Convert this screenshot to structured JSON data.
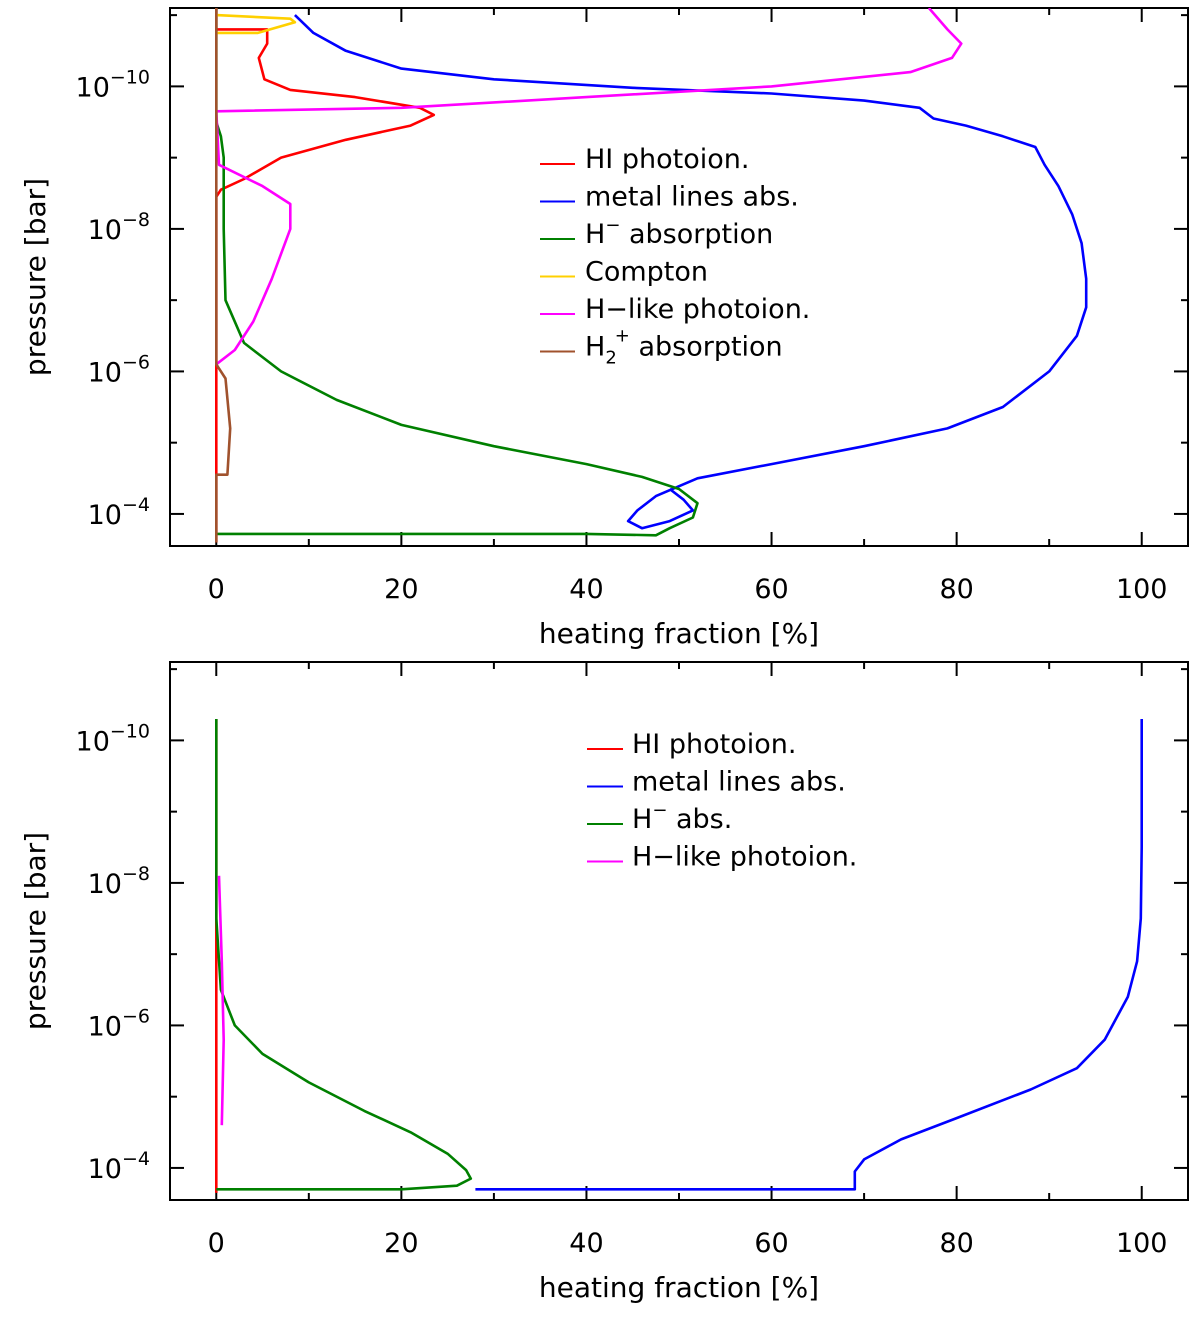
{
  "chart_data": [
    {
      "type": "line",
      "title": "",
      "xlabel": "heating fraction [%]",
      "ylabel": "pressure [bar]",
      "xscale": "linear",
      "yscale": "log",
      "xlim": [
        -5,
        105
      ],
      "ylim_exponent": [
        -11.1,
        -3.55
      ],
      "y_inverted": true,
      "x_ticks": [
        "0",
        "20",
        "40",
        "60",
        "80",
        "100"
      ],
      "y_ticks": [
        {
          "base": "10",
          "exp": "−10",
          "value": -10
        },
        {
          "base": "10",
          "exp": "−8",
          "value": -8
        },
        {
          "base": "10",
          "exp": "−6",
          "value": -6
        },
        {
          "base": "10",
          "exp": "−4",
          "value": -4
        }
      ],
      "legend_placement": "center",
      "series": [
        {
          "name": "HI photoion.",
          "color": "#ff0000",
          "points": [
            [
              0,
              -11.1
            ],
            [
              0,
              -10.8
            ],
            [
              5.5,
              -10.8
            ],
            [
              5.5,
              -10.6
            ],
            [
              4.6,
              -10.4
            ],
            [
              5.2,
              -10.1
            ],
            [
              8,
              -9.95
            ],
            [
              15,
              -9.85
            ],
            [
              22,
              -9.7
            ],
            [
              23.5,
              -9.6
            ],
            [
              21,
              -9.45
            ],
            [
              14,
              -9.25
            ],
            [
              7,
              -9.0
            ],
            [
              3,
              -8.7
            ],
            [
              0.5,
              -8.55
            ],
            [
              0,
              -8.45
            ],
            [
              0,
              -3.6
            ]
          ]
        },
        {
          "name": "metal lines abs.",
          "color": "#0000ff",
          "points": [
            [
              8.5,
              -11.0
            ],
            [
              10.5,
              -10.75
            ],
            [
              14,
              -10.5
            ],
            [
              20,
              -10.25
            ],
            [
              30,
              -10.1
            ],
            [
              45,
              -9.98
            ],
            [
              60,
              -9.9
            ],
            [
              70,
              -9.8
            ],
            [
              76,
              -9.7
            ],
            [
              77.5,
              -9.55
            ],
            [
              81,
              -9.45
            ],
            [
              85,
              -9.3
            ],
            [
              88.5,
              -9.15
            ],
            [
              89.5,
              -8.9
            ],
            [
              91,
              -8.6
            ],
            [
              92.5,
              -8.2
            ],
            [
              93.5,
              -7.8
            ],
            [
              94,
              -7.3
            ],
            [
              94,
              -6.9
            ],
            [
              93,
              -6.5
            ],
            [
              90,
              -6.0
            ],
            [
              85,
              -5.5
            ],
            [
              79,
              -5.2
            ],
            [
              70,
              -4.95
            ],
            [
              60,
              -4.7
            ],
            [
              52,
              -4.5
            ],
            [
              47.5,
              -4.25
            ],
            [
              45.5,
              -4.05
            ],
            [
              44.5,
              -3.9
            ],
            [
              46,
              -3.8
            ],
            [
              49,
              -3.9
            ],
            [
              51.5,
              -4.05
            ],
            [
              50.5,
              -4.2
            ],
            [
              49,
              -4.35
            ]
          ]
        },
        {
          "name": "H− absorption",
          "color": "#008000",
          "points": [
            [
              0,
              -11.1
            ],
            [
              0,
              -9.5
            ],
            [
              0.5,
              -9.3
            ],
            [
              0.8,
              -9.0
            ],
            [
              0.8,
              -8.0
            ],
            [
              1,
              -7.0
            ],
            [
              3,
              -6.4
            ],
            [
              7,
              -6.0
            ],
            [
              13,
              -5.6
            ],
            [
              20,
              -5.25
            ],
            [
              30,
              -4.95
            ],
            [
              40,
              -4.7
            ],
            [
              46,
              -4.52
            ],
            [
              50,
              -4.35
            ],
            [
              52,
              -4.15
            ],
            [
              51.5,
              -3.95
            ],
            [
              49,
              -3.8
            ],
            [
              47.5,
              -3.7
            ],
            [
              40,
              -3.72
            ],
            [
              20,
              -3.72
            ],
            [
              0,
              -3.72
            ]
          ]
        },
        {
          "name": "Compton",
          "color": "#ffd000",
          "points": [
            [
              0,
              -11.0
            ],
            [
              8,
              -10.95
            ],
            [
              8.5,
              -10.9
            ],
            [
              4.5,
              -10.75
            ],
            [
              0,
              -10.75
            ]
          ]
        },
        {
          "name": "H-like photoion.",
          "color": "#ff00ff",
          "points": [
            [
              77,
              -11.1
            ],
            [
              79,
              -10.8
            ],
            [
              80.5,
              -10.6
            ],
            [
              79.5,
              -10.4
            ],
            [
              75,
              -10.2
            ],
            [
              60,
              -10.0
            ],
            [
              40,
              -9.85
            ],
            [
              20,
              -9.7
            ],
            [
              0,
              -9.65
            ],
            [
              0.3,
              -8.9
            ],
            [
              5,
              -8.6
            ],
            [
              8,
              -8.35
            ],
            [
              8,
              -8.0
            ],
            [
              6,
              -7.3
            ],
            [
              4,
              -6.7
            ],
            [
              2,
              -6.3
            ],
            [
              0,
              -6.1
            ]
          ]
        },
        {
          "name": "H2+ absorption",
          "color": "#a0522d",
          "points": [
            [
              0,
              -11.1
            ],
            [
              0,
              -6.1
            ],
            [
              1,
              -5.9
            ],
            [
              1.5,
              -5.2
            ],
            [
              1.2,
              -4.55
            ],
            [
              0,
              -4.55
            ],
            [
              0,
              -3.6
            ]
          ]
        }
      ],
      "legend_entries": [
        {
          "label": "HI photoion.",
          "color": "#ff0000"
        },
        {
          "label": "metal lines abs.",
          "color": "#0000ff"
        },
        {
          "label": "H",
          "sup": "−",
          "tail": " absorption",
          "color": "#008000"
        },
        {
          "label": "Compton",
          "color": "#ffd000"
        },
        {
          "label": "H−like photoion.",
          "color": "#ff00ff"
        },
        {
          "label": "H",
          "sub": "2",
          "sup": "+",
          "tail": " absorption",
          "color": "#a0522d"
        }
      ]
    },
    {
      "type": "line",
      "title": "",
      "xlabel": "heating fraction [%]",
      "ylabel": "pressure [bar]",
      "xscale": "linear",
      "yscale": "log",
      "xlim": [
        -5,
        105
      ],
      "ylim_exponent": [
        -11.1,
        -3.55
      ],
      "y_inverted": true,
      "x_ticks": [
        "0",
        "20",
        "40",
        "60",
        "80",
        "100"
      ],
      "y_ticks": [
        {
          "base": "10",
          "exp": "−10",
          "value": -10
        },
        {
          "base": "10",
          "exp": "−8",
          "value": -8
        },
        {
          "base": "10",
          "exp": "−6",
          "value": -6
        },
        {
          "base": "10",
          "exp": "−4",
          "value": -4
        }
      ],
      "legend_placement": "top-center",
      "series": [
        {
          "name": "HI photoion.",
          "color": "#ff0000",
          "points": [
            [
              0,
              -10.3
            ],
            [
              0,
              -3.65
            ]
          ]
        },
        {
          "name": "metal lines abs.",
          "color": "#0000ff",
          "points": [
            [
              100,
              -10.3
            ],
            [
              100,
              -8.5
            ],
            [
              99.9,
              -7.5
            ],
            [
              99.5,
              -6.9
            ],
            [
              98.5,
              -6.4
            ],
            [
              96,
              -5.8
            ],
            [
              93,
              -5.4
            ],
            [
              88,
              -5.1
            ],
            [
              80,
              -4.7
            ],
            [
              74,
              -4.4
            ],
            [
              70,
              -4.12
            ],
            [
              69,
              -3.95
            ],
            [
              69,
              -3.7
            ],
            [
              28,
              -3.7
            ]
          ]
        },
        {
          "name": "H− abs.",
          "color": "#008000",
          "points": [
            [
              0,
              -10.3
            ],
            [
              0,
              -7.5
            ],
            [
              0.5,
              -6.5
            ],
            [
              2,
              -6.0
            ],
            [
              5,
              -5.6
            ],
            [
              10,
              -5.2
            ],
            [
              16,
              -4.8
            ],
            [
              21,
              -4.5
            ],
            [
              25,
              -4.2
            ],
            [
              27,
              -3.97
            ],
            [
              27.5,
              -3.85
            ],
            [
              26,
              -3.75
            ],
            [
              20,
              -3.7
            ],
            [
              0,
              -3.7
            ]
          ]
        },
        {
          "name": "H-like photoion.",
          "color": "#ff00ff",
          "points": [
            [
              0.3,
              -8.1
            ],
            [
              0.6,
              -6.9
            ],
            [
              0.8,
              -5.8
            ],
            [
              0.6,
              -4.6
            ]
          ]
        }
      ],
      "legend_entries": [
        {
          "label": "HI photoion.",
          "color": "#ff0000"
        },
        {
          "label": "metal lines abs.",
          "color": "#0000ff"
        },
        {
          "label": "H",
          "sup": "−",
          "tail": " abs.",
          "color": "#008000"
        },
        {
          "label": "H−like photoion.",
          "color": "#ff00ff"
        }
      ]
    }
  ]
}
